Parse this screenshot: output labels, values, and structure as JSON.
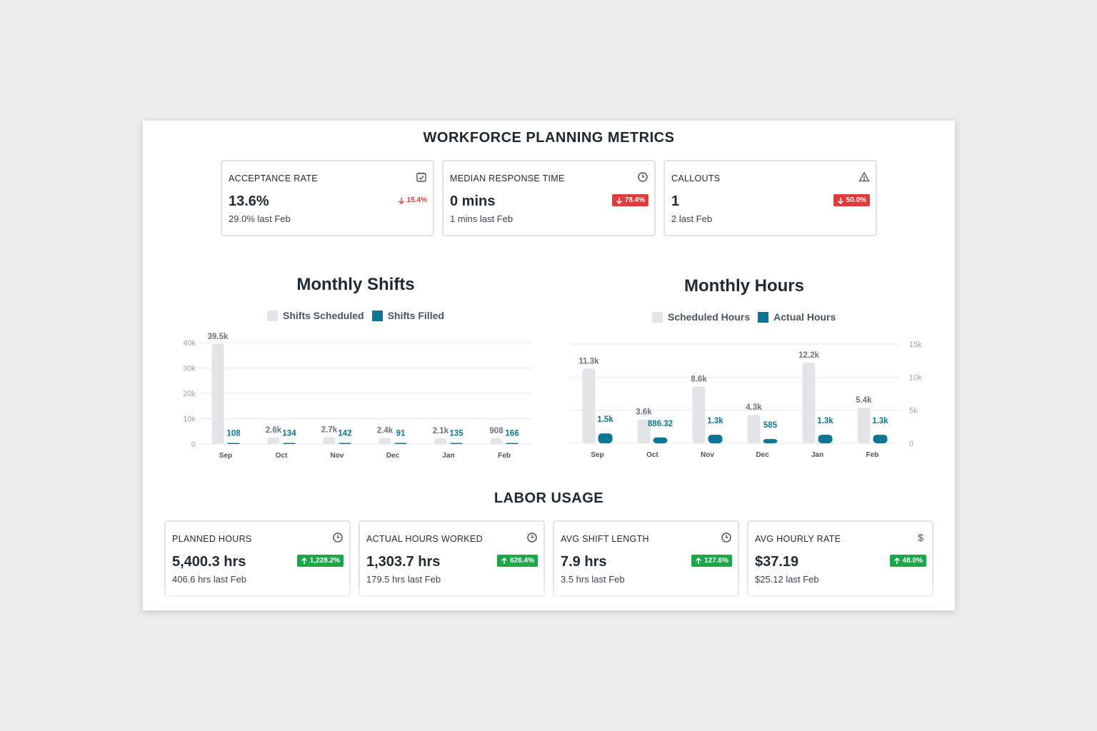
{
  "workforce": {
    "title": "WORKFORCE PLANNING METRICS",
    "cards": [
      {
        "label": "ACCEPTANCE RATE",
        "icon": "calendar-check-icon",
        "value": "13.6%",
        "sub": "29.0% last Feb",
        "badge": "15.4%",
        "badge_style": "plain-red",
        "direction": "down"
      },
      {
        "label": "MEDIAN RESPONSE TIME",
        "icon": "clock-icon",
        "value": "0 mins",
        "sub": "1 mins last Feb",
        "badge": "78.4%",
        "badge_style": "red",
        "direction": "down"
      },
      {
        "label": "CALLOUTS",
        "icon": "warning-icon",
        "value": "1",
        "sub": "2 last Feb",
        "badge": "50.0%",
        "badge_style": "red",
        "direction": "down"
      }
    ]
  },
  "colors": {
    "grey_bar": "#e2e5e7",
    "blue_bar": "#0e7594",
    "green_badge": "#1ea64a",
    "red_badge": "#e23b3b"
  },
  "chart_data": [
    {
      "type": "bar",
      "title": "Monthly Shifts",
      "categories": [
        "Sep",
        "Oct",
        "Nov",
        "Dec",
        "Jan",
        "Feb"
      ],
      "series": [
        {
          "name": "Shifts Scheduled",
          "values": [
            39500,
            2600,
            2700,
            2400,
            2100,
            908
          ],
          "labels": [
            "39.5k",
            "2.6k",
            "2.7k",
            "2.4k",
            "2.1k",
            "908"
          ]
        },
        {
          "name": "Shifts Filled",
          "values": [
            108,
            134,
            142,
            91,
            135,
            166
          ],
          "labels": [
            "108",
            "134",
            "142",
            "91",
            "135",
            "166"
          ]
        }
      ],
      "yticks": [
        "0",
        "10k",
        "20k",
        "30k",
        "40k"
      ],
      "ylim": [
        0,
        40000
      ],
      "grid": true,
      "legend": "top"
    },
    {
      "type": "bar",
      "title": "Monthly Hours",
      "categories": [
        "Sep",
        "Oct",
        "Nov",
        "Dec",
        "Jan",
        "Feb"
      ],
      "series": [
        {
          "name": "Scheduled Hours",
          "values": [
            11300,
            3600,
            8600,
            4300,
            12200,
            5400
          ],
          "labels": [
            "11.3k",
            "3.6k",
            "8.6k",
            "4.3k",
            "12.2k",
            "5.4k"
          ]
        },
        {
          "name": "Actual Hours",
          "values": [
            1500,
            886.32,
            1300,
            585,
            1300,
            1300
          ],
          "labels": [
            "1.5k",
            "886.32",
            "1.3k",
            "585",
            "1.3k",
            "1.3k"
          ]
        }
      ],
      "yticks": [
        "0",
        "5k",
        "10k",
        "15k"
      ],
      "ylim": [
        0,
        15000
      ],
      "grid": true,
      "legend": "top"
    }
  ],
  "labor": {
    "title": "LABOR USAGE",
    "cards": [
      {
        "label": "PLANNED HOURS",
        "icon": "clock-icon",
        "value": "5,400.3 hrs",
        "sub": "406.6 hrs last Feb",
        "badge": "1,228.2%",
        "badge_style": "green",
        "direction": "up"
      },
      {
        "label": "ACTUAL HOURS WORKED",
        "icon": "clock-icon",
        "value": "1,303.7 hrs",
        "sub": "179.5 hrs last Feb",
        "badge": "626.4%",
        "badge_style": "green",
        "direction": "up"
      },
      {
        "label": "AVG SHIFT LENGTH",
        "icon": "clock-icon",
        "value": "7.9 hrs",
        "sub": "3.5 hrs last Feb",
        "badge": "127.6%",
        "badge_style": "green",
        "direction": "up"
      },
      {
        "label": "AVG HOURLY RATE",
        "icon": "dollar-icon",
        "value": "$37.19",
        "sub": "$25.12 last Feb",
        "badge": "48.0%",
        "badge_style": "green",
        "direction": "up"
      }
    ]
  }
}
